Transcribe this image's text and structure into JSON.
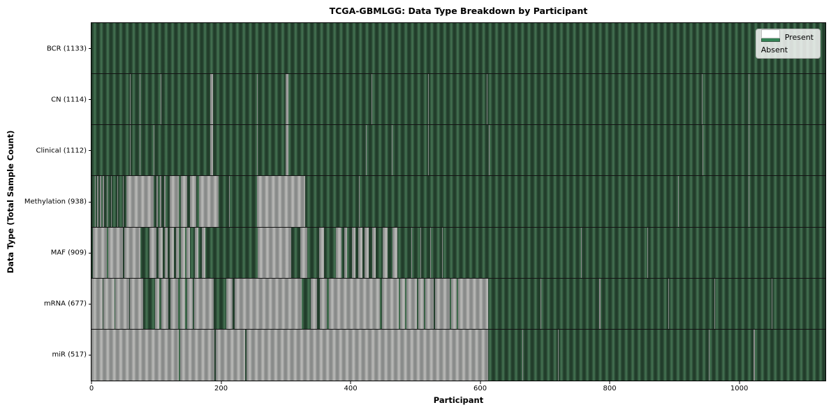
{
  "chart_data": {
    "type": "heatmap",
    "title": "TCGA-GBMLGG: Data Type Breakdown by Participant",
    "xlabel": "Participant",
    "ylabel": "Data Type (Total Sample Count)",
    "legend": {
      "present_label": "Present",
      "absent_label": "Absent"
    },
    "legend_position": "upper right",
    "grid": false,
    "n_participants": 1133,
    "x_ticks": [
      0,
      200,
      400,
      600,
      800,
      1000
    ],
    "xlim": [
      0,
      1133
    ],
    "rows": [
      {
        "data_type": "BCR",
        "label": "BCR (1133)",
        "present_count": 1133,
        "absent_ranges": []
      },
      {
        "data_type": "CN",
        "label": "CN (1114)",
        "present_count": 1114,
        "absent_ranges": [
          [
            59,
            60
          ],
          [
            74,
            75
          ],
          [
            107,
            108
          ],
          [
            183,
            188
          ],
          [
            256,
            257
          ],
          [
            300,
            304
          ],
          [
            432,
            433
          ],
          [
            520,
            521
          ],
          [
            610,
            611
          ],
          [
            942,
            943
          ],
          [
            1014,
            1015
          ]
        ]
      },
      {
        "data_type": "Clinical",
        "label": "Clinical (1112)",
        "present_count": 1112,
        "absent_ranges": [
          [
            59,
            60
          ],
          [
            74,
            75
          ],
          [
            96,
            97
          ],
          [
            183,
            188
          ],
          [
            256,
            257
          ],
          [
            300,
            304
          ],
          [
            424,
            425
          ],
          [
            464,
            465
          ],
          [
            520,
            521
          ],
          [
            613,
            614
          ],
          [
            943,
            944
          ],
          [
            1014,
            1016
          ]
        ]
      },
      {
        "data_type": "Methylation",
        "label": "Methylation (938)",
        "present_count": 938,
        "absent_ranges": [
          [
            5,
            7
          ],
          [
            9,
            11
          ],
          [
            13,
            15
          ],
          [
            17,
            19
          ],
          [
            24,
            25
          ],
          [
            30,
            31
          ],
          [
            40,
            41
          ],
          [
            48,
            49
          ],
          [
            54,
            96
          ],
          [
            100,
            102
          ],
          [
            106,
            108
          ],
          [
            112,
            114
          ],
          [
            121,
            135
          ],
          [
            138,
            148
          ],
          [
            152,
            162
          ],
          [
            166,
            196
          ],
          [
            212,
            213
          ],
          [
            256,
            330
          ],
          [
            413,
            414
          ],
          [
            905,
            906
          ],
          [
            1014,
            1015
          ]
        ]
      },
      {
        "data_type": "MAF",
        "label": "MAF (909)",
        "present_count": 909,
        "absent_ranges": [
          [
            2,
            24
          ],
          [
            26,
            49
          ],
          [
            51,
            75
          ],
          [
            90,
            100
          ],
          [
            103,
            110
          ],
          [
            113,
            118
          ],
          [
            121,
            127
          ],
          [
            130,
            135
          ],
          [
            138,
            144
          ],
          [
            147,
            152
          ],
          [
            160,
            165
          ],
          [
            170,
            176
          ],
          [
            257,
            308
          ],
          [
            322,
            333
          ],
          [
            351,
            359
          ],
          [
            377,
            386
          ],
          [
            390,
            395
          ],
          [
            402,
            408
          ],
          [
            412,
            418
          ],
          [
            422,
            428
          ],
          [
            433,
            439
          ],
          [
            450,
            457
          ],
          [
            465,
            472
          ],
          [
            494,
            495
          ],
          [
            508,
            509
          ],
          [
            523,
            524
          ],
          [
            541,
            542
          ],
          [
            756,
            757
          ],
          [
            858,
            859
          ]
        ]
      },
      {
        "data_type": "mRNA",
        "label": "mRNA (677)",
        "present_count": 677,
        "absent_ranges": [
          [
            0,
            17
          ],
          [
            18,
            36
          ],
          [
            37,
            58
          ],
          [
            59,
            80
          ],
          [
            98,
            105
          ],
          [
            108,
            119
          ],
          [
            122,
            134
          ],
          [
            137,
            145
          ],
          [
            148,
            156
          ],
          [
            159,
            189
          ],
          [
            208,
            218
          ],
          [
            221,
            324
          ],
          [
            339,
            348
          ],
          [
            352,
            363
          ],
          [
            367,
            445
          ],
          [
            448,
            474
          ],
          [
            476,
            484
          ],
          [
            486,
            502
          ],
          [
            504,
            513
          ],
          [
            515,
            528
          ],
          [
            530,
            553
          ],
          [
            555,
            564
          ],
          [
            566,
            612
          ],
          [
            693,
            694
          ],
          [
            784,
            786
          ],
          [
            890,
            891
          ],
          [
            962,
            963
          ],
          [
            1050,
            1051
          ]
        ]
      },
      {
        "data_type": "miR",
        "label": "miR (517)",
        "present_count": 517,
        "absent_ranges": [
          [
            0,
            135
          ],
          [
            137,
            190
          ],
          [
            192,
            237
          ],
          [
            239,
            612
          ],
          [
            665,
            666
          ],
          [
            720,
            721
          ],
          [
            953,
            954
          ],
          [
            1022,
            1024
          ]
        ]
      }
    ]
  },
  "colors": {
    "present_dark": "#223d2b",
    "present_mid": "#33583f",
    "present_light": "#437050",
    "absent_dark": "#898b8a",
    "absent_mid": "#a5a6a4",
    "absent_light": "#b8b8b6",
    "legend_present_swatch": "#348355",
    "legend_absent_swatch": "#ffffff",
    "separator": "#121212"
  }
}
